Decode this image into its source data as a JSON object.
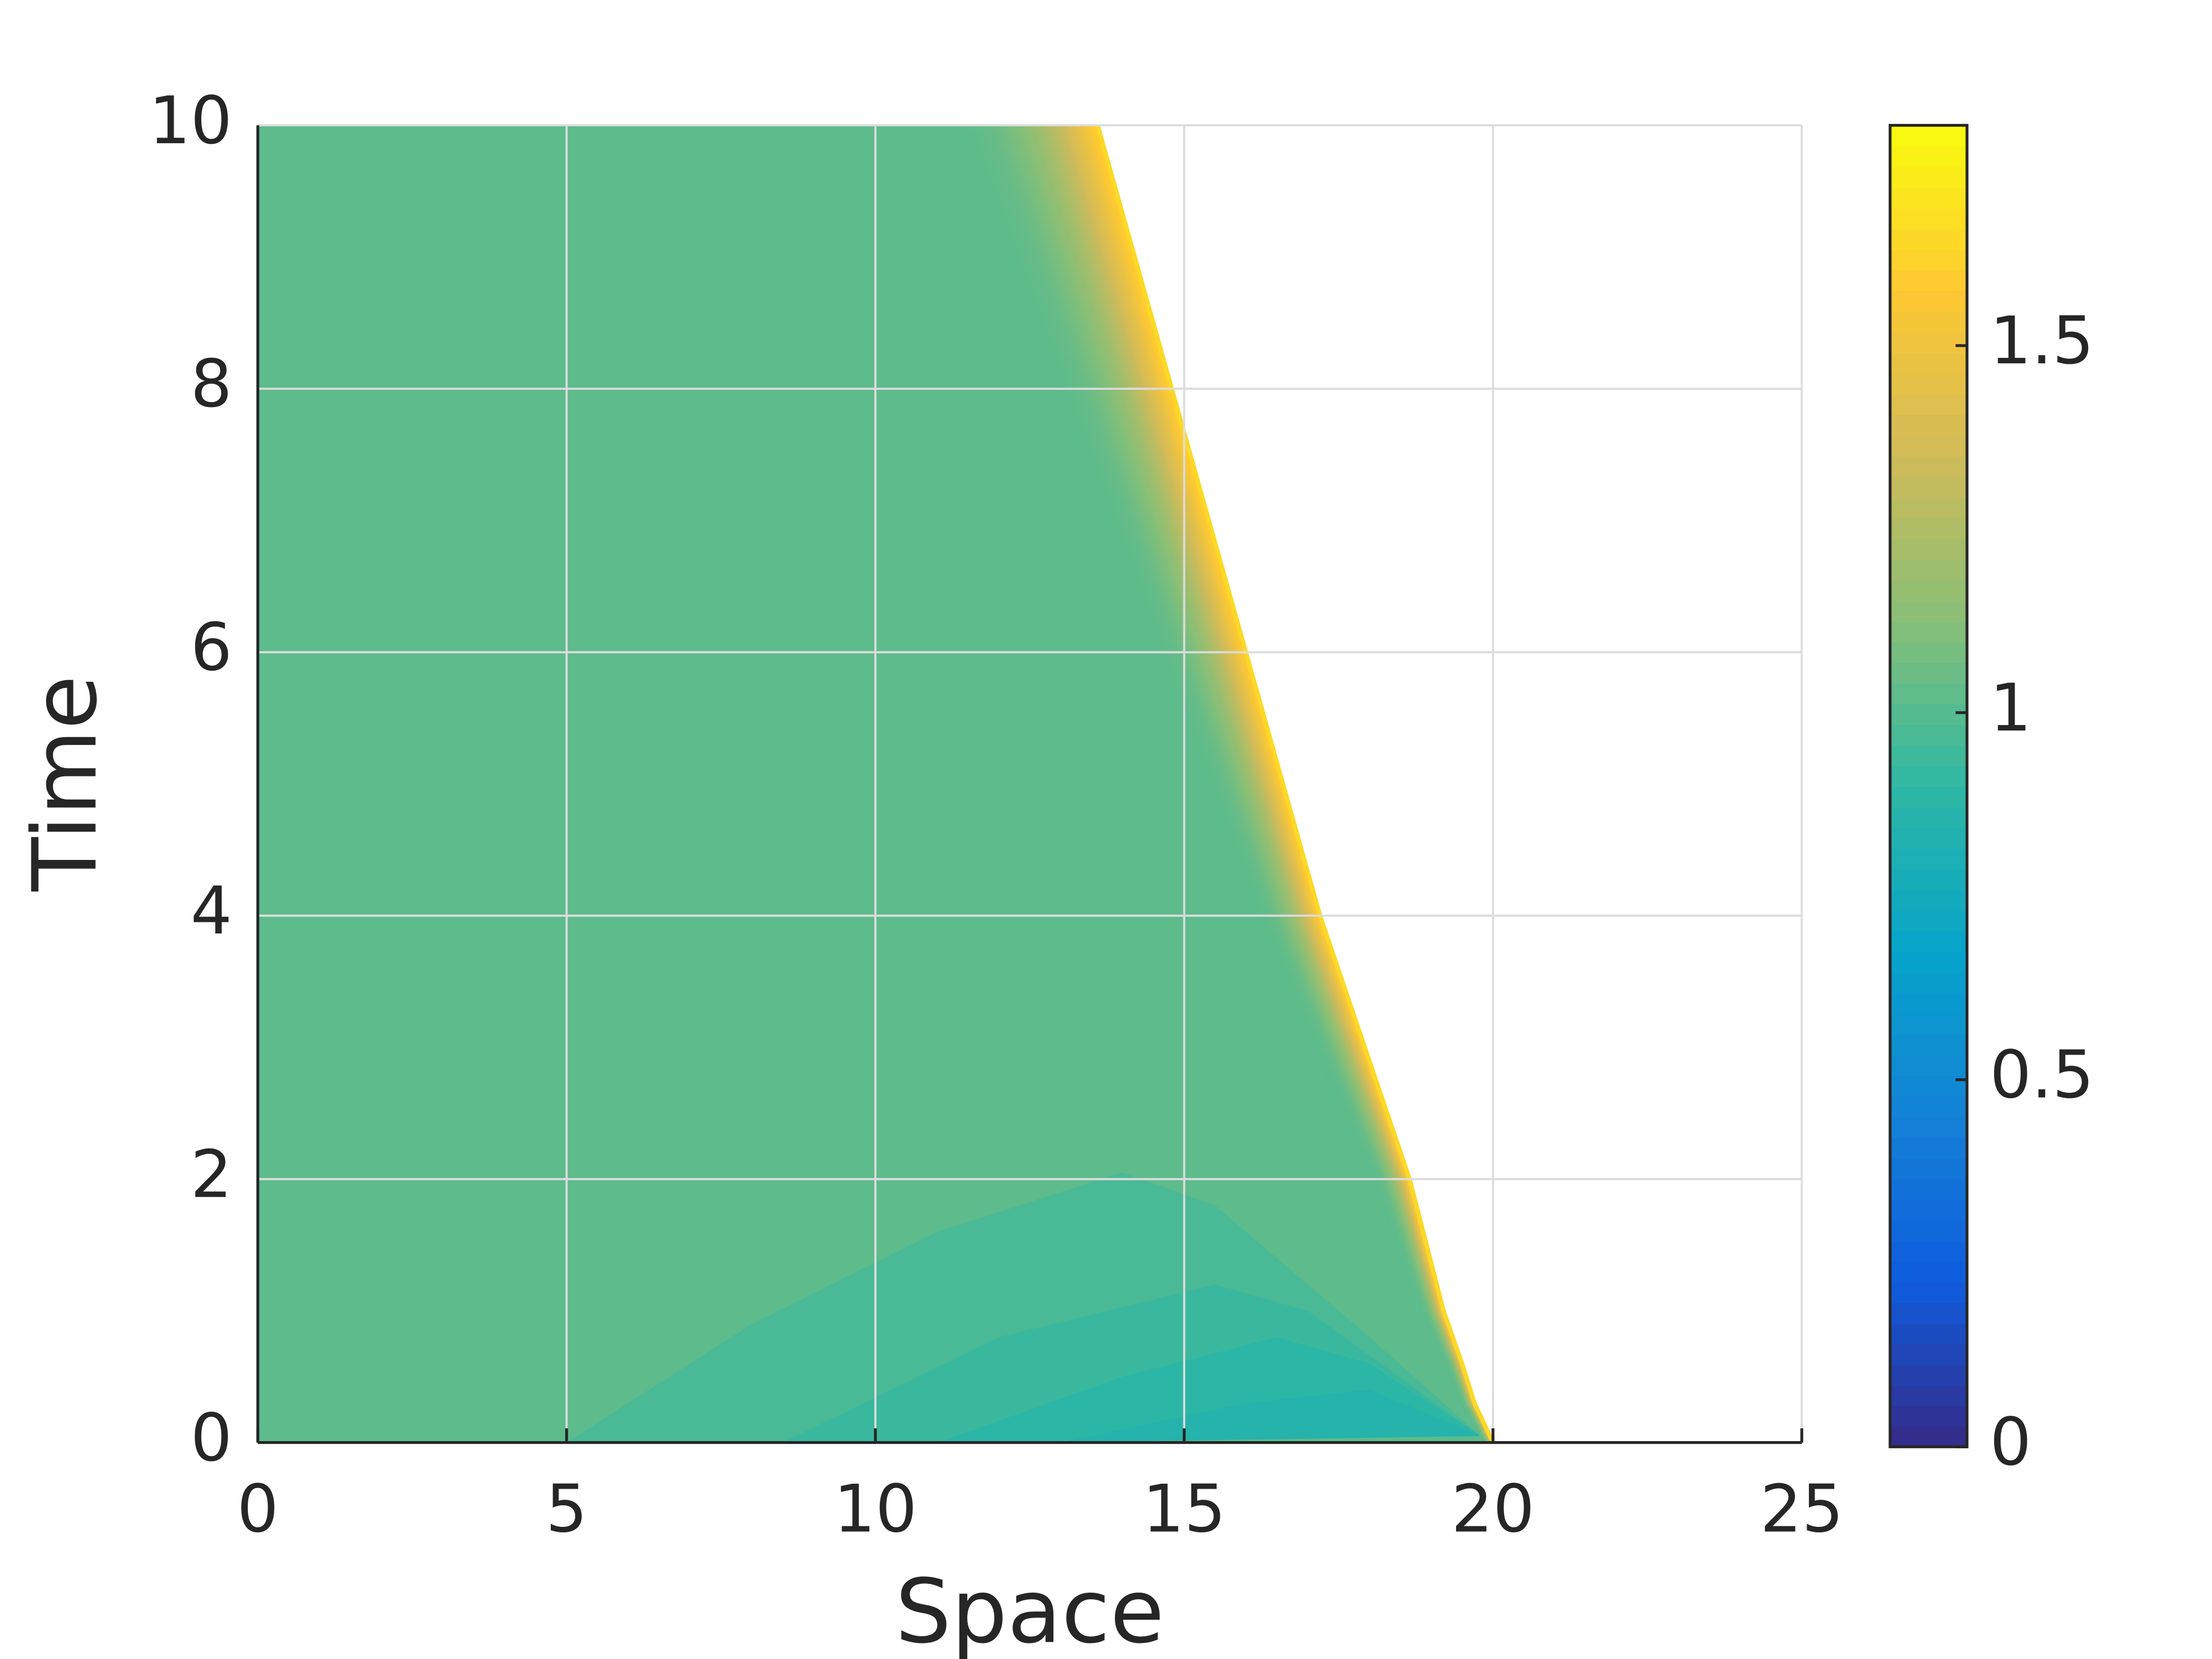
{
  "chart_data": {
    "type": "contour",
    "xlabel": "Space",
    "ylabel": "Time",
    "xlim": [
      0,
      25
    ],
    "xticks": [
      0,
      5,
      10,
      15,
      20,
      25
    ],
    "ylim": [
      0,
      10
    ],
    "yticks": [
      0,
      2,
      4,
      6,
      8,
      10
    ],
    "grid": true,
    "clim": [
      0,
      1.8
    ],
    "colorbar_ticks": [
      0,
      0.5,
      1,
      1.5
    ],
    "colormap": [
      "#352a87",
      "#0f5cdd",
      "#1481d6",
      "#06a4ca",
      "#2eb7a4",
      "#87bf77",
      "#d1bb59",
      "#fec832",
      "#f9fb0e"
    ],
    "plateau_value": 1.02,
    "front_value": 1.65,
    "front": {
      "t": [
        0,
        0.1,
        0.3,
        0.6,
        1,
        2,
        4,
        6,
        8,
        10
      ],
      "x": [
        20,
        19.9,
        19.7,
        19.5,
        19.2,
        18.65,
        17.2,
        16.0,
        14.8,
        13.6
      ]
    },
    "contours": [
      {
        "value": 0.97,
        "x": [
          5,
          8,
          11,
          14,
          15.5,
          18,
          19.8
        ],
        "t": [
          0,
          0.9,
          1.6,
          2.05,
          1.8,
          0.8,
          0.05
        ]
      },
      {
        "value": 0.93,
        "x": [
          8.5,
          12,
          15.5,
          17,
          19.8
        ],
        "t": [
          0,
          0.8,
          1.2,
          1.0,
          0.05
        ]
      },
      {
        "value": 0.89,
        "x": [
          11,
          14,
          16.5,
          18,
          19.8
        ],
        "t": [
          0,
          0.5,
          0.8,
          0.6,
          0.05
        ]
      },
      {
        "value": 0.85,
        "x": [
          13,
          16,
          18,
          19.8
        ],
        "t": [
          0,
          0.3,
          0.4,
          0.05
        ]
      }
    ]
  }
}
